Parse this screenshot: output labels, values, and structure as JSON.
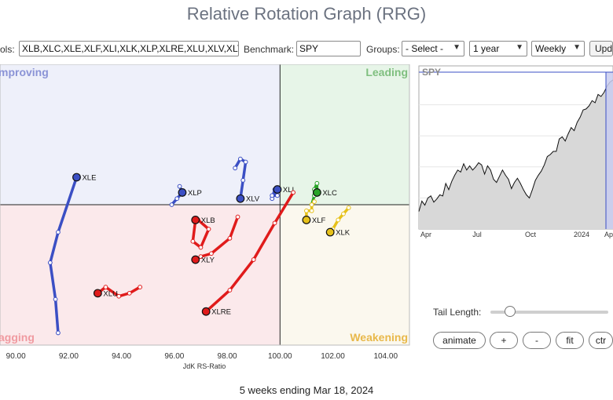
{
  "title": "Relative Rotation Graph (RRG)",
  "toolbar": {
    "symbols_label": "ols:",
    "symbols_value": "XLB,XLC,XLE,XLF,XLI,XLK,XLP,XLRE,XLU,XLV,XLY",
    "benchmark_label": "Benchmark:",
    "benchmark_value": "SPY",
    "groups_label": "Groups:",
    "groups_value": "- Select -",
    "period_value": "1 year",
    "frequency_value": "Weekly",
    "update_label": "Upd"
  },
  "quadrants": {
    "improving": "mproving",
    "leading": "Leading",
    "lagging": "agging",
    "weakening": "Weakening"
  },
  "colors": {
    "improving_bg": "#eef0fa",
    "leading_bg": "#e7f5e8",
    "lagging_bg": "#fbe9eb",
    "weakening_bg": "#fbf8ee",
    "improving_text": "#8a93d6",
    "leading_text": "#7fbf7f",
    "lagging_text": "#f09aa0",
    "weakening_text": "#e8b84a",
    "blue": "#3b4fc4",
    "red": "#e01b1b",
    "green": "#28a428",
    "yellow": "#e6c11a"
  },
  "chart_data": {
    "type": "scatter",
    "xlabel": "JdK RS-Ratio",
    "xlim": [
      89.4,
      104.9
    ],
    "ylim": [
      95.4,
      104.6
    ],
    "center": [
      100,
      100
    ],
    "x_ticks": [
      90,
      92,
      94,
      96,
      98,
      100,
      102,
      104
    ],
    "x_tick_labels": [
      "90.00",
      "92.00",
      "94.00",
      "96.00",
      "98.00",
      "100.00",
      "102.00",
      "104.00"
    ],
    "series": [
      {
        "name": "XLE",
        "color": "blue",
        "label_side": "right",
        "points": [
          [
            91.6,
            95.8
          ],
          [
            91.5,
            96.9
          ],
          [
            91.3,
            98.1
          ],
          [
            91.6,
            99.1
          ],
          [
            92.3,
            100.9
          ]
        ]
      },
      {
        "name": "XLP",
        "color": "blue",
        "label_side": "right",
        "points": [
          [
            95.9,
            100.0
          ],
          [
            96.1,
            100.2
          ],
          [
            96.3,
            100.4
          ],
          [
            96.2,
            100.6
          ],
          [
            96.3,
            100.4
          ]
        ]
      },
      {
        "name": "XLV",
        "color": "blue",
        "label_side": "right",
        "points": [
          [
            98.3,
            101.2
          ],
          [
            98.5,
            101.5
          ],
          [
            98.7,
            101.4
          ],
          [
            98.6,
            100.8
          ],
          [
            98.5,
            100.2
          ]
        ]
      },
      {
        "name": "XLI",
        "color": "blue",
        "label_side": "right",
        "points": [
          [
            99.7,
            100.2
          ],
          [
            99.8,
            100.5
          ],
          [
            99.9,
            100.3
          ],
          [
            99.7,
            100.3
          ],
          [
            99.9,
            100.5
          ]
        ]
      },
      {
        "name": "XLC",
        "color": "green",
        "label_side": "right",
        "points": [
          [
            101.2,
            100.0
          ],
          [
            101.3,
            100.3
          ],
          [
            101.3,
            100.5
          ],
          [
            101.4,
            100.7
          ],
          [
            101.4,
            100.4
          ]
        ]
      },
      {
        "name": "XLF",
        "color": "yellow",
        "label_side": "right",
        "points": [
          [
            101.3,
            100.1
          ],
          [
            101.2,
            100.0
          ],
          [
            101.2,
            99.8
          ],
          [
            101.0,
            99.8
          ],
          [
            101.0,
            99.5
          ]
        ]
      },
      {
        "name": "XLK",
        "color": "yellow",
        "label_side": "right",
        "points": [
          [
            102.6,
            99.9
          ],
          [
            102.4,
            99.7
          ],
          [
            102.2,
            99.5
          ],
          [
            102.0,
            99.2
          ],
          [
            101.9,
            99.1
          ]
        ]
      },
      {
        "name": "XLB",
        "color": "red",
        "label_side": "right",
        "points": [
          [
            96.9,
            99.5
          ],
          [
            97.3,
            99.2
          ],
          [
            97.0,
            98.6
          ],
          [
            96.7,
            98.8
          ],
          [
            96.8,
            99.5
          ]
        ]
      },
      {
        "name": "XLY",
        "color": "red",
        "label_side": "right",
        "points": [
          [
            98.4,
            99.6
          ],
          [
            98.1,
            98.9
          ],
          [
            97.4,
            98.4
          ],
          [
            97.0,
            98.3
          ],
          [
            96.8,
            98.2
          ]
        ]
      },
      {
        "name": "XLU",
        "color": "red",
        "label_side": "right",
        "points": [
          [
            94.7,
            97.3
          ],
          [
            94.3,
            97.1
          ],
          [
            93.9,
            97.0
          ],
          [
            93.4,
            97.3
          ],
          [
            93.1,
            97.1
          ]
        ]
      },
      {
        "name": "XLRE",
        "color": "red",
        "label_side": "right",
        "points": [
          [
            100.5,
            100.4
          ],
          [
            99.8,
            99.4
          ],
          [
            99.0,
            98.2
          ],
          [
            98.1,
            97.2
          ],
          [
            97.2,
            96.5
          ]
        ]
      }
    ]
  },
  "spy_chart": {
    "type": "area",
    "title": "SPY",
    "x_tick_labels": [
      "Apr",
      "Jul",
      "Oct",
      "2024",
      "Apr"
    ],
    "values": [
      4020,
      4120,
      4080,
      4150,
      4170,
      4110,
      4140,
      4180,
      4170,
      4290,
      4230,
      4310,
      4370,
      4420,
      4400,
      4480,
      4420,
      4460,
      4420,
      4450,
      4490,
      4470,
      4380,
      4460,
      4420,
      4330,
      4300,
      4360,
      4420,
      4370,
      4330,
      4240,
      4300,
      4340,
      4290,
      4230,
      4180,
      4150,
      4230,
      4320,
      4370,
      4410,
      4470,
      4550,
      4570,
      4600,
      4600,
      4720,
      4740,
      4700,
      4770,
      4830,
      4800,
      4880,
      4930,
      5000,
      5010,
      5040,
      5090,
      5070,
      5150,
      5130,
      5170,
      5230,
      5270,
      5290
    ]
  },
  "controls": {
    "tail_length_label": "Tail Length:",
    "animate_label": "animate",
    "plus_label": "+",
    "minus_label": "-",
    "fit_label": "fit",
    "ctr_label": "ctr"
  },
  "footer": "5 weeks ending Mar 18, 2024"
}
